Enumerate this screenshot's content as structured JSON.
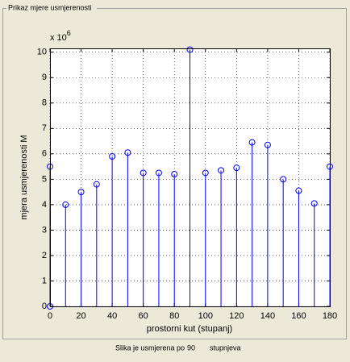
{
  "panel": {
    "title": "Prikaz mjere usmjerenosti"
  },
  "chart_data": {
    "type": "stem",
    "xlabel": "prostorni kut (stupanj)",
    "ylabel": "mjera usmjerenosti M",
    "y_multiplier": {
      "base": "x 10",
      "exponent": 6
    },
    "x": [
      0,
      0,
      10,
      20,
      30,
      40,
      50,
      60,
      70,
      80,
      90,
      100,
      110,
      120,
      130,
      140,
      150,
      160,
      170,
      180
    ],
    "values": [
      0,
      5.5,
      4.0,
      4.5,
      4.8,
      5.9,
      6.05,
      5.25,
      5.25,
      5.2,
      10.1,
      5.25,
      5.35,
      5.45,
      6.45,
      6.35,
      5.0,
      4.55,
      4.05,
      5.5
    ],
    "color": "#0000ff",
    "xlim": [
      0,
      180
    ],
    "xticks": [
      0,
      20,
      40,
      60,
      80,
      100,
      120,
      140,
      160,
      180
    ],
    "ylim": [
      0,
      10.15
    ],
    "yticks": [
      0,
      1,
      2,
      3,
      4,
      5,
      6,
      7,
      8,
      9,
      10
    ],
    "grid": true
  },
  "status": {
    "prefix": "Slika je usmjerena po",
    "value": 90,
    "suffix": "stupnjeva"
  }
}
